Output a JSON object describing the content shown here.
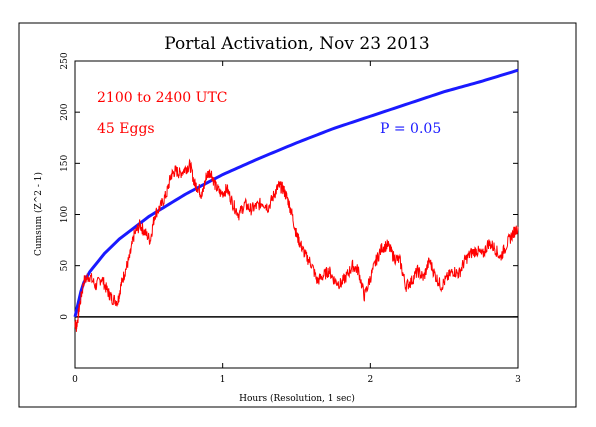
{
  "chart_data": {
    "type": "line",
    "title": "Portal Activation, Nov 23 2013",
    "xlabel": "Hours (Resolution, 1 sec)",
    "ylabel": "Cumsum (Z^2 - 1)",
    "xlim": [
      0,
      3
    ],
    "ylim": [
      -50,
      250
    ],
    "x_ticks": [
      0,
      1,
      2,
      3
    ],
    "y_ticks": [
      0,
      50,
      100,
      150,
      200,
      250
    ],
    "grid": false,
    "annotations": {
      "time_range": "2100 to 2400 UTC",
      "eggs": "45 Eggs",
      "p_label": "P = 0.05"
    },
    "baseline": {
      "y": 0,
      "color": "#000000"
    },
    "colors": {
      "data": "#ff0000",
      "probability": "#1a1aff",
      "axis": "#000000"
    },
    "series": [
      {
        "name": "",
        "role": "probability-envelope",
        "color": "#1a1aff",
        "x": [
          0,
          0.05,
          0.1,
          0.2,
          0.3,
          0.5,
          0.75,
          1.0,
          1.25,
          1.5,
          1.75,
          2.0,
          2.25,
          2.5,
          2.75,
          3.0
        ],
        "values": [
          0,
          31,
          44,
          62,
          76,
          98,
          120,
          139,
          155,
          170,
          184,
          196,
          208,
          220,
          230,
          241
        ]
      },
      {
        "name": "",
        "role": "cumulative-deviation",
        "color": "#ff0000",
        "x": [
          0,
          0.01,
          0.03,
          0.06,
          0.1,
          0.14,
          0.18,
          0.22,
          0.25,
          0.29,
          0.31,
          0.34,
          0.37,
          0.4,
          0.44,
          0.47,
          0.51,
          0.54,
          0.58,
          0.62,
          0.65,
          0.68,
          0.71,
          0.75,
          0.78,
          0.81,
          0.84,
          0.86,
          0.89,
          0.92,
          0.95,
          0.99,
          1.03,
          1.07,
          1.11,
          1.15,
          1.19,
          1.23,
          1.27,
          1.31,
          1.35,
          1.38,
          1.41,
          1.44,
          1.47,
          1.5,
          1.53,
          1.56,
          1.6,
          1.64,
          1.68,
          1.72,
          1.76,
          1.8,
          1.84,
          1.88,
          1.92,
          1.96,
          2.0,
          2.04,
          2.08,
          2.12,
          2.16,
          2.2,
          2.24,
          2.28,
          2.32,
          2.36,
          2.4,
          2.44,
          2.48,
          2.52,
          2.56,
          2.6,
          2.64,
          2.68,
          2.72,
          2.76,
          2.8,
          2.84,
          2.88,
          2.92,
          2.96,
          3.0
        ],
        "values": [
          -5,
          -10,
          10,
          35,
          40,
          30,
          38,
          25,
          18,
          15,
          30,
          45,
          58,
          80,
          90,
          83,
          75,
          100,
          108,
          120,
          138,
          143,
          140,
          145,
          148,
          130,
          125,
          118,
          138,
          142,
          128,
          120,
          125,
          110,
          100,
          110,
          105,
          108,
          112,
          107,
          120,
          128,
          125,
          115,
          100,
          80,
          70,
          60,
          52,
          35,
          40,
          45,
          35,
          32,
          40,
          50,
          45,
          20,
          38,
          55,
          68,
          70,
          58,
          55,
          30,
          35,
          45,
          38,
          55,
          40,
          30,
          38,
          45,
          42,
          55,
          62,
          65,
          60,
          72,
          68,
          58,
          70,
          80,
          88
        ]
      }
    ]
  }
}
